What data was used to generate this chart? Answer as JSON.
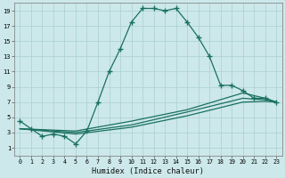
{
  "xlabel": "Humidex (Indice chaleur)",
  "background_color": "#cce8ea",
  "grid_color": "#aacfd2",
  "line_color": "#1a7060",
  "xlim": [
    -0.5,
    23.5
  ],
  "ylim": [
    0,
    20
  ],
  "xticks": [
    0,
    1,
    2,
    3,
    4,
    5,
    6,
    7,
    8,
    9,
    10,
    11,
    12,
    13,
    14,
    15,
    16,
    17,
    18,
    19,
    20,
    21,
    22,
    23
  ],
  "yticks": [
    1,
    3,
    5,
    7,
    9,
    11,
    13,
    15,
    17,
    19
  ],
  "line1_x": [
    0,
    1,
    2,
    3,
    4,
    5,
    6,
    7,
    8,
    9,
    10,
    11,
    12,
    13,
    14,
    15,
    16,
    17,
    18,
    19,
    20,
    21,
    22,
    23
  ],
  "line1_y": [
    4.5,
    3.5,
    2.5,
    2.8,
    2.5,
    1.5,
    3.2,
    7.0,
    11.0,
    14.0,
    17.5,
    19.3,
    19.3,
    19.0,
    19.3,
    17.5,
    15.5,
    13.0,
    9.2,
    9.2,
    8.5,
    7.5,
    7.5,
    7.0
  ],
  "line2_x": [
    0,
    5,
    10,
    15,
    20,
    22,
    23
  ],
  "line2_y": [
    3.5,
    3.2,
    4.5,
    6.0,
    8.2,
    7.5,
    7.0
  ],
  "line3_x": [
    0,
    5,
    10,
    15,
    20,
    22,
    23
  ],
  "line3_y": [
    3.5,
    3.0,
    4.0,
    5.7,
    7.5,
    7.3,
    7.0
  ],
  "line4_x": [
    0,
    5,
    10,
    15,
    20,
    22,
    23
  ],
  "line4_y": [
    3.5,
    2.8,
    3.7,
    5.2,
    7.0,
    7.1,
    7.0
  ]
}
